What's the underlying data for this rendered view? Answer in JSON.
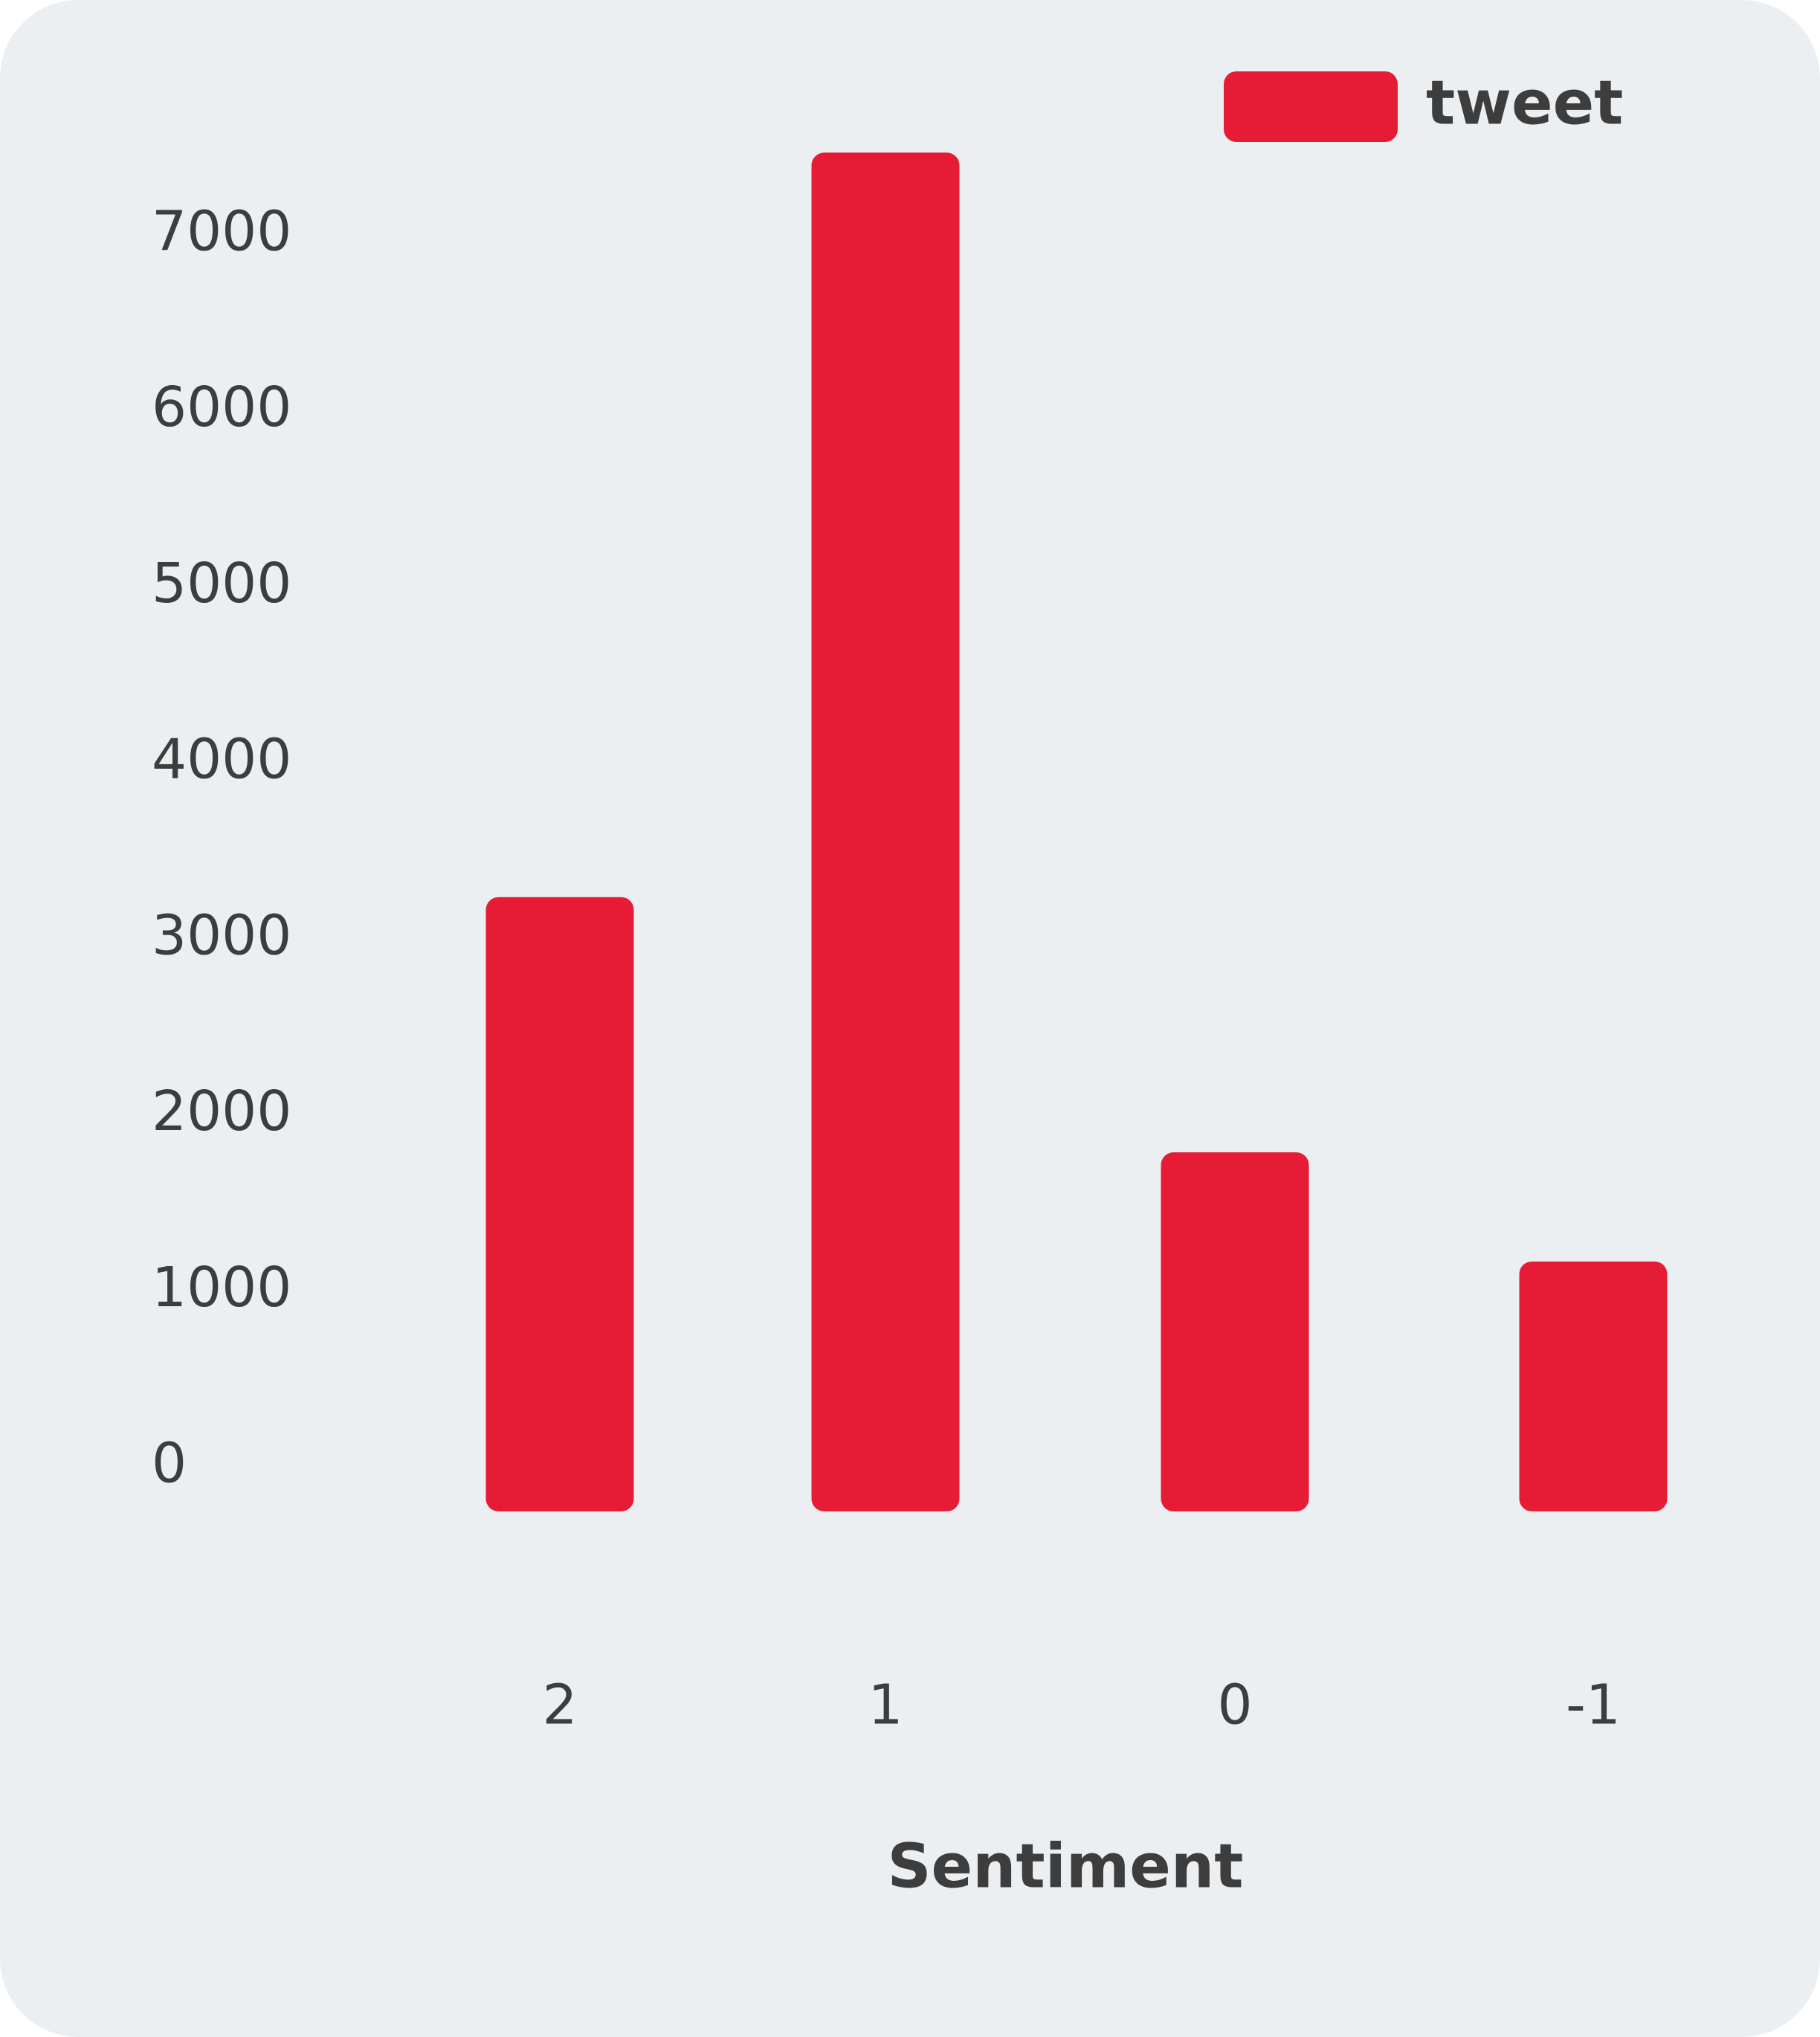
{
  "chart_data": {
    "type": "bar",
    "x_label": "Sentiment",
    "categories": [
      "2",
      "1",
      "0",
      "-1"
    ],
    "series": [
      {
        "name": "tweet",
        "color": "#e61c36",
        "values": [
          3490,
          7720,
          2040,
          1420
        ]
      }
    ],
    "ylim": [
      0,
      8000
    ],
    "yticks": [
      0,
      1000,
      2000,
      3000,
      4000,
      5000,
      6000,
      7000
    ],
    "grid": false,
    "legend": "top-right"
  }
}
